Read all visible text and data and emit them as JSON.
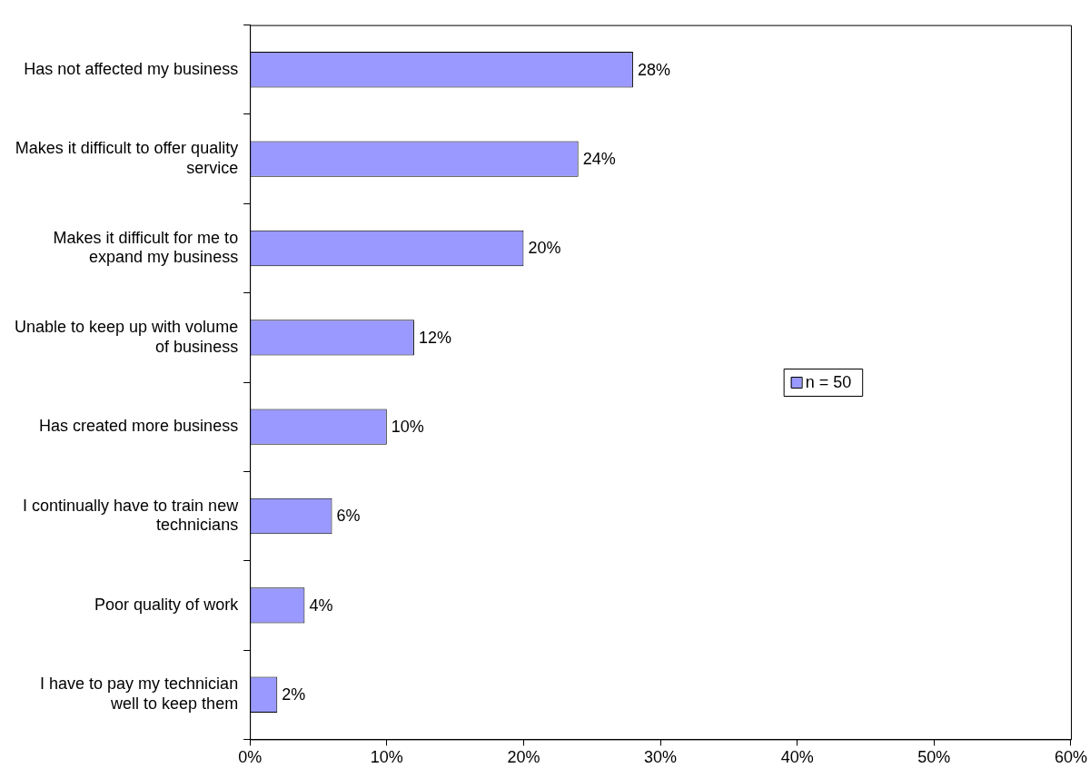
{
  "chart_data": {
    "type": "bar",
    "orientation": "horizontal",
    "categories": [
      "Has not affected my business",
      "Makes it difficult to offer quality service",
      "Makes it difficult for me to expand my business",
      "Unable to keep up with volume of business",
      "Has created more business",
      "I continually have to train new technicians",
      "Poor quality of work",
      "I have to pay my technician well to keep them"
    ],
    "series": [
      {
        "name": "n = 50",
        "color": "#9999ff",
        "values": [
          28,
          24,
          20,
          12,
          10,
          6,
          4,
          2
        ],
        "value_labels": [
          "28%",
          "24%",
          "20%",
          "12%",
          "10%",
          "6%",
          "4%",
          "2%"
        ]
      }
    ],
    "xlim": [
      0,
      60
    ],
    "xticks": [
      {
        "value": 0,
        "label": "0%"
      },
      {
        "value": 10,
        "label": "10%"
      },
      {
        "value": 20,
        "label": "20%"
      },
      {
        "value": 30,
        "label": "30%"
      },
      {
        "value": 40,
        "label": "40%"
      },
      {
        "value": 50,
        "label": "50%"
      },
      {
        "value": 60,
        "label": "60%"
      }
    ],
    "grid": false,
    "legend": "right"
  }
}
